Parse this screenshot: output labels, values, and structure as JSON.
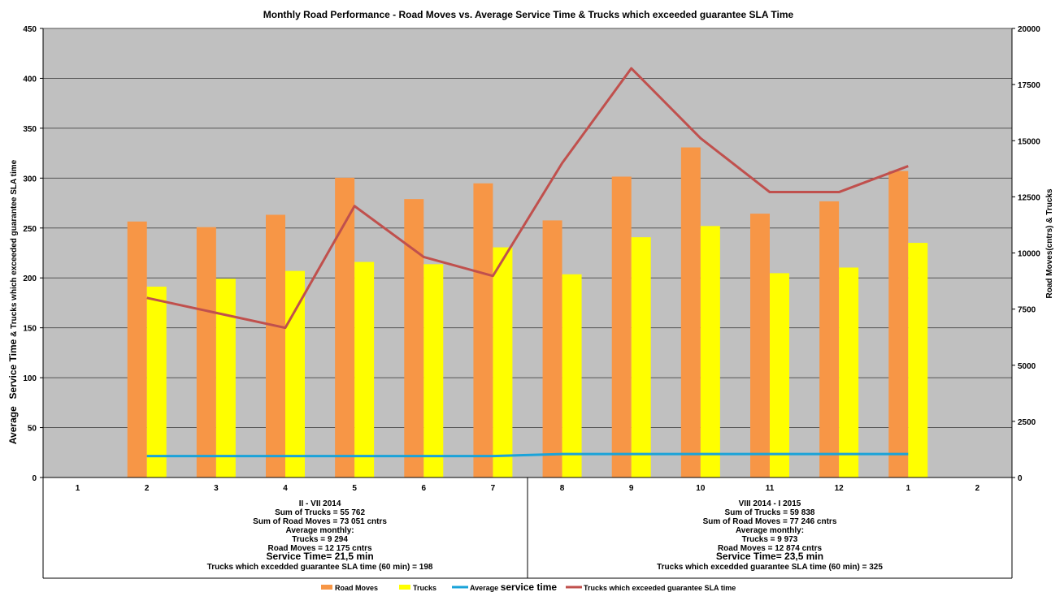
{
  "chart_data": {
    "type": "bar",
    "title": "Monthly Road Performance - Road Moves vs. Average Service Time & Trucks which exceeded guarantee SLA Time",
    "categories": [
      "1",
      "2",
      "3",
      "4",
      "5",
      "6",
      "7",
      "8",
      "9",
      "10",
      "11",
      "12",
      "1",
      "2"
    ],
    "left_axis": {
      "label_part1": "Average",
      "label_part2": "Service Time",
      "label_part3": " & Trucks which exceeded guarantee SLA time",
      "min": 0,
      "max": 450,
      "ticks": [
        0,
        50,
        100,
        150,
        200,
        250,
        300,
        350,
        400,
        450
      ]
    },
    "right_axis": {
      "label": "Road Moves(cntrs) & Trucks",
      "min": 0,
      "max": 20000,
      "ticks": [
        0,
        2500,
        5000,
        7500,
        10000,
        12500,
        15000,
        17500,
        20000
      ]
    },
    "grid": true,
    "legend_position": "bottom",
    "series": [
      {
        "name": "Road Moves",
        "type": "bar",
        "axis": "right",
        "color": "#F79646",
        "values": [
          null,
          11400,
          11150,
          11700,
          13350,
          12400,
          13100,
          11450,
          13400,
          14700,
          11750,
          12300,
          13650,
          null
        ]
      },
      {
        "name": "Trucks",
        "type": "bar",
        "axis": "right",
        "color": "#FFFF00",
        "values": [
          null,
          8500,
          8850,
          9200,
          9600,
          9500,
          10250,
          9050,
          10700,
          11200,
          9100,
          9350,
          10450,
          null
        ]
      },
      {
        "name": "Average service time",
        "type": "line",
        "axis": "left",
        "color": "#1AA3D9",
        "values": [
          null,
          21.5,
          21.5,
          21.5,
          21.5,
          21.5,
          21.5,
          23.5,
          23.5,
          23.5,
          23.5,
          23.5,
          23.5,
          null
        ]
      },
      {
        "name": "Trucks which exceeded guarantee SLA time",
        "type": "line",
        "axis": "left",
        "color": "#C0504D",
        "values": [
          null,
          180,
          165,
          150,
          272,
          221,
          202,
          315,
          410,
          340,
          286,
          286,
          312,
          null
        ]
      }
    ],
    "legend": {
      "road_moves": "Road Moves",
      "trucks": "Trucks",
      "avg_prefix": "Average ",
      "avg_big": "service time",
      "sla": "Trucks which exceeded guarantee SLA time"
    },
    "table_notes": [
      {
        "lines": [
          {
            "text": "II - VII 2014",
            "big": false
          },
          {
            "text": "Sum of Trucks = 55 762",
            "big": false
          },
          {
            "text": "Sum of Road Moves = 73 051 cntrs",
            "big": false
          },
          {
            "text": "Average monthly:",
            "big": false
          },
          {
            "text": "Trucks = 9 294",
            "big": false
          },
          {
            "text": "Road Moves = 12 175 cntrs",
            "big": false
          },
          {
            "text": "Service Time= 21,5 min",
            "big": true
          },
          {
            "text": "Trucks which excedded guarantee SLA time (60 min) = 198",
            "big": false
          }
        ]
      },
      {
        "lines": [
          {
            "text": "VIII 2014 - I 2015",
            "big": false
          },
          {
            "text": "Sum of Trucks = 59 838",
            "big": false
          },
          {
            "text": "Sum of Road Moves = 77 246 cntrs",
            "big": false
          },
          {
            "text": "Average monthly:",
            "big": false
          },
          {
            "text": "Trucks = 9 973",
            "big": false
          },
          {
            "text": "Road Moves = 12 874 cntrs",
            "big": false
          },
          {
            "text": "Service Time= 23,5 min",
            "big": true
          },
          {
            "text": "Trucks which excedded guarantee SLA time (60 min) = 325",
            "big": false
          }
        ]
      }
    ]
  }
}
